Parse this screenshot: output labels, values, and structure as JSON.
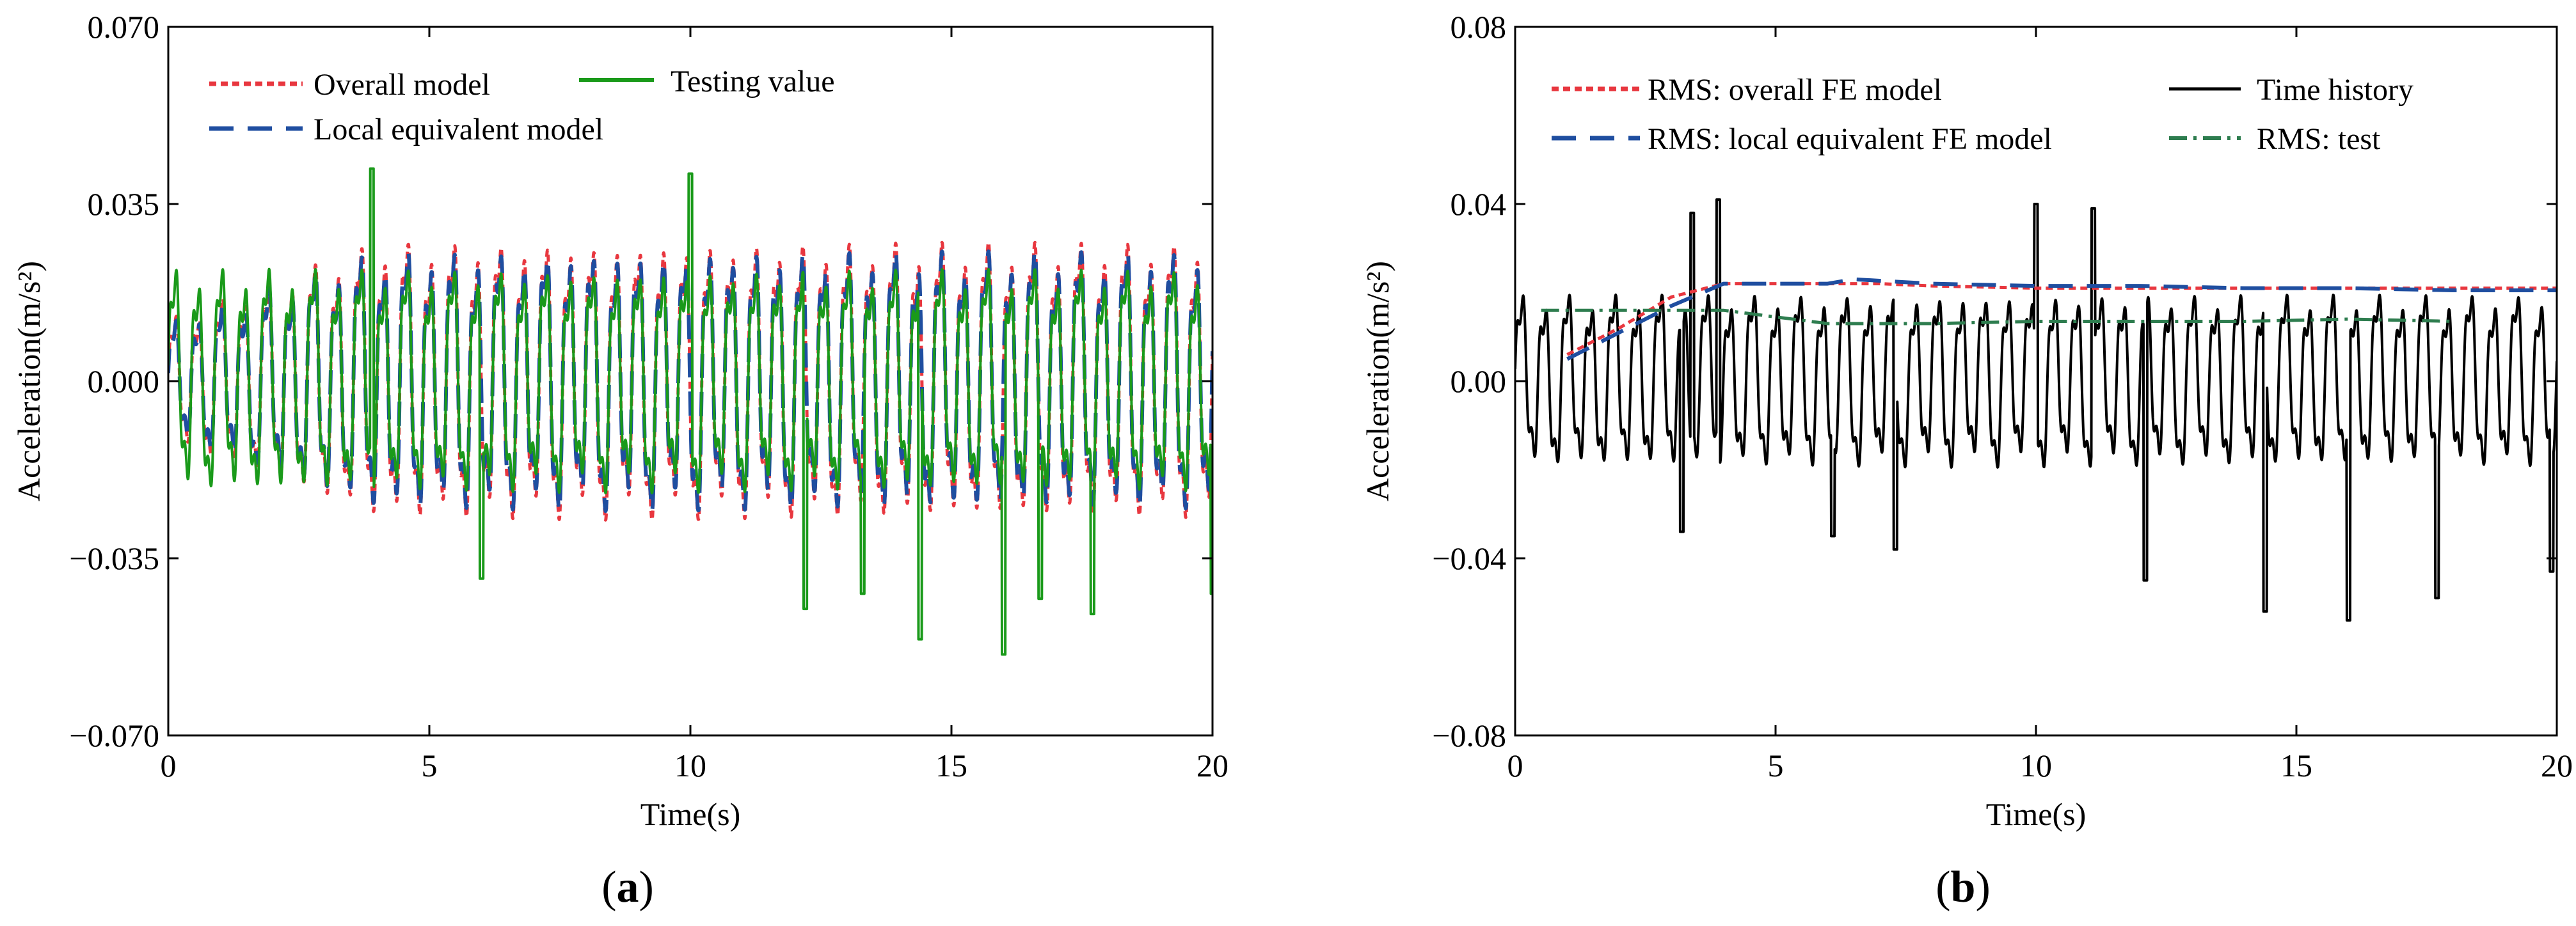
{
  "chart_data": [
    {
      "type": "line",
      "panel_label": "a",
      "xlabel": "Time(s)",
      "ylabel": "Acceleration(m/s²)",
      "xlim": [
        0,
        20
      ],
      "ylim": [
        -0.07,
        0.07
      ],
      "xticks": [
        0,
        5,
        10,
        15,
        20
      ],
      "xtick_labels": [
        "0",
        "5",
        "10",
        "15",
        "20"
      ],
      "yticks": [
        0.07,
        0.035,
        0.0,
        -0.035,
        -0.07
      ],
      "ytick_labels": [
        "0.070",
        "0.035",
        "0.000",
        "−0.035",
        "−0.070"
      ],
      "legend_position": "top-left",
      "series": [
        {
          "name": "Overall model",
          "color": "#e8373f",
          "style": "dotted",
          "signal": {
            "amplitude": 0.031,
            "offset": 0.0,
            "frequency_hz": 2.25,
            "ramp_until_s": 4
          }
        },
        {
          "name": "Testing value",
          "color": "#1a9a1a",
          "style": "solid",
          "signal": {
            "amplitude": 0.025,
            "offset": 0.0,
            "frequency_hz": 2.25,
            "ramp_until_s": 0.0
          }
        },
        {
          "name": "Local equivalent model",
          "color": "#1f4ea0",
          "style": "dashed",
          "signal": {
            "amplitude": 0.029,
            "offset": 0.0,
            "frequency_hz": 2.25,
            "ramp_until_s": 4
          }
        }
      ],
      "spikes": [
        {
          "t": 3.9,
          "value": 0.042
        },
        {
          "t": 10.0,
          "value": 0.041
        },
        {
          "t": 6.0,
          "value": -0.039
        },
        {
          "t": 12.2,
          "value": -0.045
        },
        {
          "t": 13.3,
          "value": -0.042
        },
        {
          "t": 14.4,
          "value": -0.051
        },
        {
          "t": 16.0,
          "value": -0.054
        },
        {
          "t": 16.7,
          "value": -0.043
        },
        {
          "t": 17.7,
          "value": -0.046
        },
        {
          "t": 20.0,
          "value": -0.042
        }
      ]
    },
    {
      "type": "line",
      "panel_label": "b",
      "xlabel": "Time(s)",
      "ylabel": "Acceleration(m/s²)",
      "xlim": [
        0,
        20
      ],
      "ylim": [
        -0.08,
        0.08
      ],
      "xticks": [
        0,
        5,
        10,
        15,
        20
      ],
      "xtick_labels": [
        "0",
        "5",
        "10",
        "15",
        "20"
      ],
      "yticks": [
        0.08,
        0.04,
        0.0,
        -0.04,
        -0.08
      ],
      "ytick_labels": [
        "0.08",
        "0.04",
        "0.00",
        "−0.04",
        "−0.08"
      ],
      "legend_position": "top",
      "series": [
        {
          "name": "RMS: overall FE model",
          "color": "#e8373f",
          "style": "dotted",
          "x": [
            1.0,
            2.0,
            3.0,
            4.0,
            5.0,
            6.0,
            7.0,
            8.0,
            10.0,
            12.0,
            14.0,
            16.0,
            18.0,
            20.0
          ],
          "values": [
            0.006,
            0.012,
            0.019,
            0.022,
            0.022,
            0.022,
            0.022,
            0.0215,
            0.021,
            0.021,
            0.021,
            0.021,
            0.021,
            0.021
          ]
        },
        {
          "name": "Time history",
          "color": "#000000",
          "style": "solid",
          "signal": {
            "amplitude": 0.022,
            "offset": 0.0,
            "frequency_hz": 2.25,
            "ramp_until_s": 0.0
          }
        },
        {
          "name": "RMS: local equivalent FE model",
          "color": "#1f4ea0",
          "style": "dashed",
          "x": [
            1.0,
            2.0,
            3.0,
            4.0,
            5.0,
            6.0,
            6.5,
            8.0,
            10.0,
            12.0,
            14.0,
            16.0,
            18.0,
            20.0
          ],
          "values": [
            0.005,
            0.011,
            0.017,
            0.022,
            0.022,
            0.022,
            0.023,
            0.022,
            0.0215,
            0.0215,
            0.021,
            0.021,
            0.0205,
            0.0205
          ]
        },
        {
          "name": "RMS: test",
          "color": "#2e7d4f",
          "style": "dashdot",
          "x": [
            0.5,
            2.5,
            4.0,
            5.0,
            6.0,
            8.0,
            10.0,
            12.0,
            14.0,
            16.0,
            18.0
          ],
          "values": [
            0.016,
            0.016,
            0.016,
            0.0145,
            0.013,
            0.013,
            0.0135,
            0.0135,
            0.0135,
            0.014,
            0.0135
          ]
        }
      ],
      "spikes": [
        {
          "t": 3.4,
          "value": 0.038
        },
        {
          "t": 3.9,
          "value": 0.041
        },
        {
          "t": 10.0,
          "value": 0.04
        },
        {
          "t": 11.1,
          "value": 0.039
        },
        {
          "t": 3.2,
          "value": -0.034
        },
        {
          "t": 6.1,
          "value": -0.035
        },
        {
          "t": 7.3,
          "value": -0.038
        },
        {
          "t": 12.1,
          "value": -0.045
        },
        {
          "t": 14.4,
          "value": -0.052
        },
        {
          "t": 16.0,
          "value": -0.054
        },
        {
          "t": 17.7,
          "value": -0.049
        },
        {
          "t": 19.9,
          "value": -0.043
        }
      ]
    }
  ]
}
